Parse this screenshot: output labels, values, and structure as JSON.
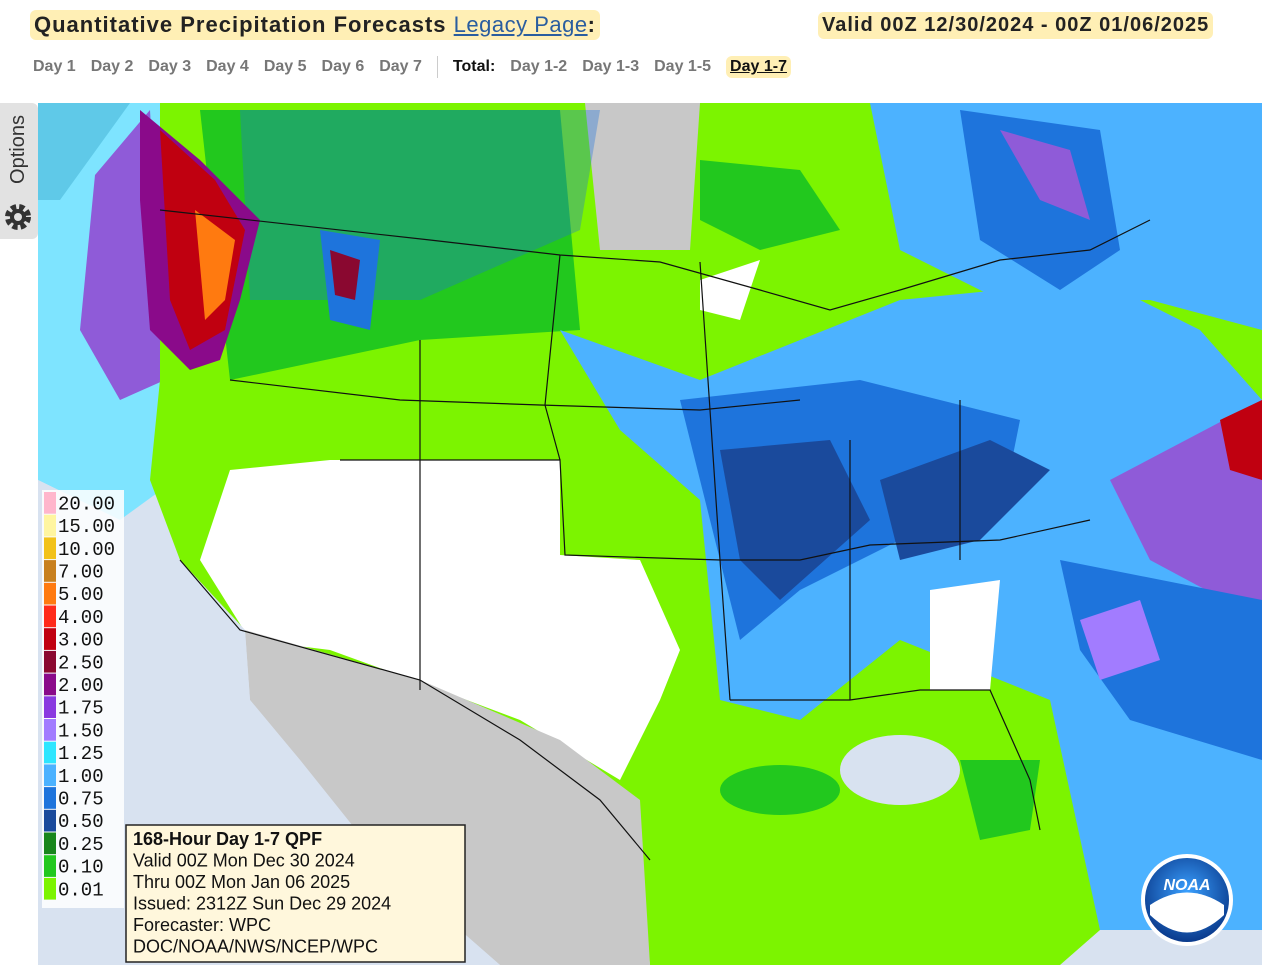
{
  "header": {
    "title": "Quantitative Precipitation Forecasts",
    "link": "Legacy Page",
    "colon": ":",
    "valid": "Valid 00Z 12/30/2024 - 00Z 01/06/2025"
  },
  "tabs": {
    "days": [
      "Day 1",
      "Day 2",
      "Day 3",
      "Day 4",
      "Day 5",
      "Day 6",
      "Day 7"
    ],
    "total_label": "Total:",
    "totals": [
      "Day 1-2",
      "Day 1-3",
      "Day 1-5",
      "Day 1-7"
    ]
  },
  "sidebar": {
    "options": "Options"
  },
  "legend": {
    "items": [
      {
        "label": "20.00",
        "color": "#ffb6cc"
      },
      {
        "label": "15.00",
        "color": "#fff5a0"
      },
      {
        "label": "10.00",
        "color": "#f2c21a"
      },
      {
        "label": "7.00",
        "color": "#c8801f"
      },
      {
        "label": "5.00",
        "color": "#ff7a10"
      },
      {
        "label": "4.00",
        "color": "#ff2a1a"
      },
      {
        "label": "3.00",
        "color": "#c00010"
      },
      {
        "label": "2.50",
        "color": "#8a0830"
      },
      {
        "label": "2.00",
        "color": "#8a0a8a"
      },
      {
        "label": "1.75",
        "color": "#8a3ae0"
      },
      {
        "label": "1.50",
        "color": "#a27cff"
      },
      {
        "label": "1.25",
        "color": "#2ee6ff"
      },
      {
        "label": "1.00",
        "color": "#4cb2ff"
      },
      {
        "label": "0.75",
        "color": "#1e74dc"
      },
      {
        "label": "0.50",
        "color": "#1a4a9c"
      },
      {
        "label": "0.25",
        "color": "#18861c"
      },
      {
        "label": "0.10",
        "color": "#22c81e"
      },
      {
        "label": "0.01",
        "color": "#7cf400"
      }
    ]
  },
  "info_box": {
    "lines": [
      "168-Hour Day 1-7 QPF",
      "Valid 00Z Mon Dec 30 2024",
      "Thru 00Z Mon Jan 06 2025",
      "Issued: 2312Z Sun Dec 29 2024",
      "Forecaster: WPC",
      "DOC/NOAA/NWS/NCEP/WPC"
    ]
  },
  "logo": {
    "text": "NOAA"
  }
}
